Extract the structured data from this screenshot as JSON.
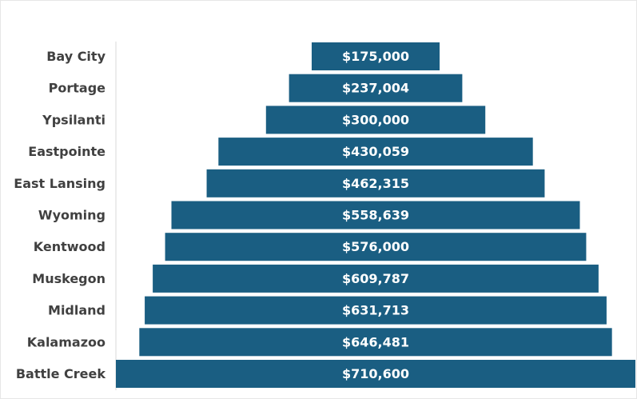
{
  "chart_data": {
    "type": "funnel",
    "categories": [
      "Bay City",
      "Portage",
      "Ypsilanti",
      "Eastpointe",
      "East Lansing",
      "Wyoming",
      "Kentwood",
      "Muskegon",
      "Midland",
      "Kalamazoo",
      "Battle Creek"
    ],
    "values": [
      175000,
      237004,
      300000,
      430059,
      462315,
      558639,
      576000,
      609787,
      631713,
      646481,
      710600
    ],
    "value_labels": [
      "$175,000",
      "$237,004",
      "$300,000",
      "$430,059",
      "$462,315",
      "$558,639",
      "$576,000",
      "$609,787",
      "$631,713",
      "$646,481",
      "$710,600"
    ],
    "color": "#1a5e82"
  }
}
